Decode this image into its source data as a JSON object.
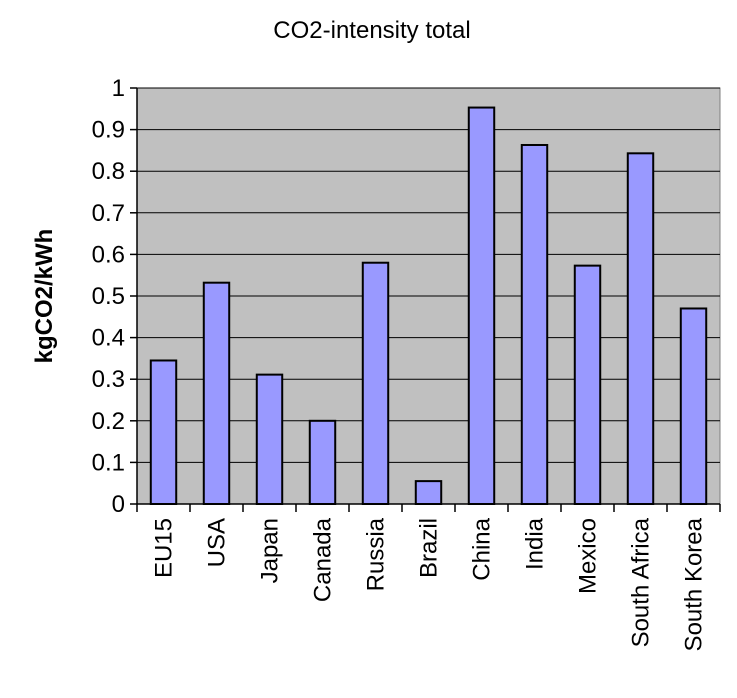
{
  "chart_data": {
    "type": "bar",
    "title": "CO2-intensity total",
    "xlabel": "",
    "ylabel": "kgCO2/kWh",
    "ylim": [
      0,
      1
    ],
    "yticks": [
      "0",
      "0.1",
      "0.2",
      "0.3",
      "0.4",
      "0.5",
      "0.6",
      "0.7",
      "0.8",
      "0.9",
      "1"
    ],
    "grid": true,
    "legend": "none",
    "categories": [
      "EU15",
      "USA",
      "Japan",
      "Canada",
      "Russia",
      "Brazil",
      "China",
      "India",
      "Mexico",
      "South Africa",
      "South Korea"
    ],
    "values": [
      0.345,
      0.532,
      0.311,
      0.2,
      0.58,
      0.055,
      0.953,
      0.863,
      0.573,
      0.843,
      0.47
    ],
    "colors": {
      "bar_fill": "#9999ff",
      "bar_stroke": "#000000",
      "plot_background": "#c0c0c0",
      "gridline": "#000000"
    }
  }
}
